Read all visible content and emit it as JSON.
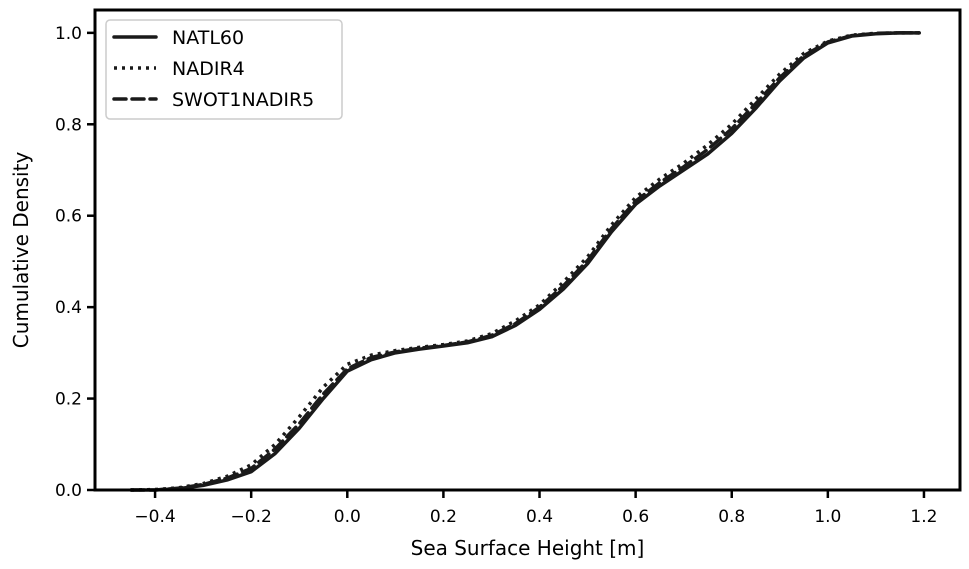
{
  "chart_data": {
    "type": "line",
    "xlabel": "Sea Surface Height [m]",
    "ylabel": "Cumulative Density",
    "xlim": [
      -0.525,
      1.275
    ],
    "ylim": [
      0.0,
      1.05
    ],
    "xticks": [
      "−0.4",
      "−0.2",
      "0.0",
      "0.2",
      "0.4",
      "0.6",
      "0.8",
      "1.0",
      "1.2"
    ],
    "xtick_values": [
      -0.4,
      -0.2,
      0.0,
      0.2,
      0.4,
      0.6,
      0.8,
      1.0,
      1.2
    ],
    "yticks": [
      "0.0",
      "0.2",
      "0.4",
      "0.6",
      "0.8",
      "1.0"
    ],
    "ytick_values": [
      0.0,
      0.2,
      0.4,
      0.6,
      0.8,
      1.0
    ],
    "grid": false,
    "legend_position": "top-left",
    "series": [
      {
        "name": "NATL60",
        "line_style": "solid",
        "color": "#1a1a1a",
        "x": [
          -0.45,
          -0.4,
          -0.35,
          -0.3,
          -0.25,
          -0.2,
          -0.15,
          -0.1,
          -0.05,
          0.0,
          0.05,
          0.1,
          0.15,
          0.2,
          0.25,
          0.3,
          0.35,
          0.4,
          0.45,
          0.5,
          0.55,
          0.6,
          0.65,
          0.7,
          0.75,
          0.8,
          0.85,
          0.9,
          0.95,
          1.0,
          1.05,
          1.1,
          1.15,
          1.19
        ],
        "y": [
          0.0,
          0.0,
          0.003,
          0.01,
          0.022,
          0.04,
          0.08,
          0.135,
          0.2,
          0.26,
          0.285,
          0.3,
          0.308,
          0.315,
          0.322,
          0.335,
          0.36,
          0.395,
          0.44,
          0.495,
          0.565,
          0.625,
          0.665,
          0.7,
          0.735,
          0.78,
          0.835,
          0.895,
          0.945,
          0.978,
          0.993,
          0.998,
          1.0,
          1.0
        ]
      },
      {
        "name": "NADIR4",
        "line_style": "dotted",
        "color": "#1a1a1a",
        "x": [
          -0.45,
          -0.4,
          -0.35,
          -0.3,
          -0.25,
          -0.2,
          -0.15,
          -0.1,
          -0.05,
          0.0,
          0.05,
          0.1,
          0.15,
          0.2,
          0.25,
          0.3,
          0.35,
          0.4,
          0.45,
          0.5,
          0.55,
          0.6,
          0.65,
          0.7,
          0.75,
          0.8,
          0.85,
          0.9,
          0.95,
          1.0,
          1.05,
          1.1,
          1.15,
          1.19
        ],
        "y": [
          0.0,
          0.001,
          0.005,
          0.014,
          0.03,
          0.055,
          0.1,
          0.16,
          0.225,
          0.275,
          0.295,
          0.305,
          0.312,
          0.318,
          0.326,
          0.342,
          0.37,
          0.405,
          0.455,
          0.51,
          0.58,
          0.64,
          0.68,
          0.715,
          0.755,
          0.8,
          0.855,
          0.91,
          0.955,
          0.982,
          0.995,
          0.999,
          1.0,
          1.0
        ]
      },
      {
        "name": "SWOT1NADIR5",
        "line_style": "dashed",
        "color": "#1a1a1a",
        "x": [
          -0.45,
          -0.4,
          -0.35,
          -0.3,
          -0.25,
          -0.2,
          -0.15,
          -0.1,
          -0.05,
          0.0,
          0.05,
          0.1,
          0.15,
          0.2,
          0.25,
          0.3,
          0.35,
          0.4,
          0.45,
          0.5,
          0.55,
          0.6,
          0.65,
          0.7,
          0.75,
          0.8,
          0.85,
          0.9,
          0.95,
          1.0,
          1.05,
          1.1,
          1.15,
          1.19
        ],
        "y": [
          0.0,
          0.0,
          0.004,
          0.012,
          0.026,
          0.047,
          0.09,
          0.145,
          0.21,
          0.265,
          0.29,
          0.302,
          0.31,
          0.316,
          0.324,
          0.338,
          0.364,
          0.4,
          0.447,
          0.502,
          0.572,
          0.632,
          0.672,
          0.707,
          0.745,
          0.79,
          0.845,
          0.902,
          0.95,
          0.98,
          0.994,
          0.999,
          1.0,
          1.0
        ]
      }
    ]
  }
}
